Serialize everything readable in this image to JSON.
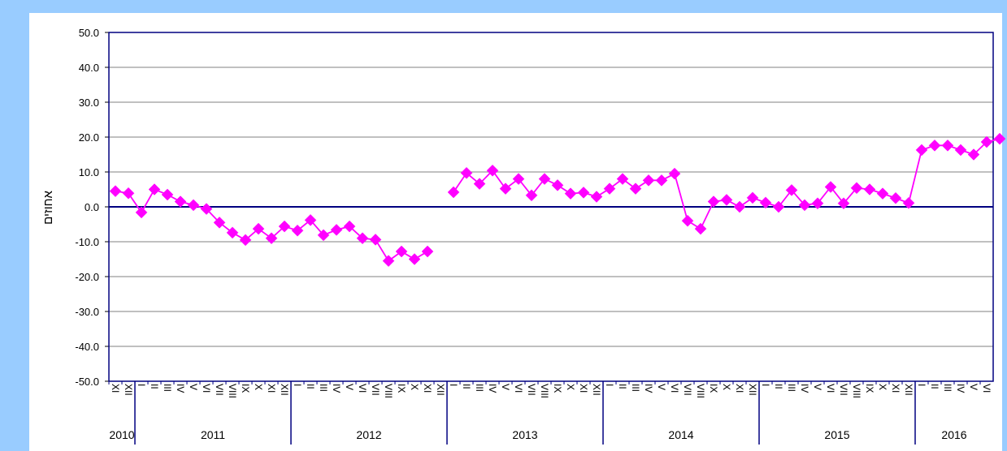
{
  "chart_data": {
    "type": "line",
    "xlabel": "",
    "ylabel": "אחוזים",
    "ylim": [
      -50,
      50
    ],
    "yticks": [
      "50.0",
      "40.0",
      "30.0",
      "20.0",
      "10.0",
      "0.0",
      "-10.0",
      "-20.0",
      "-30.0",
      "-40.0",
      "-50.0"
    ],
    "grid": true,
    "legend": "none",
    "series_color": "#ff00ff",
    "axis_color": "#000080",
    "years": [
      {
        "label": "2010",
        "months": [
          "XI",
          "XII"
        ]
      },
      {
        "label": "2011",
        "months": [
          "I",
          "II",
          "III",
          "IV",
          "V",
          "VI",
          "VII",
          "VIII",
          "IX",
          "X",
          "XI",
          "XII"
        ]
      },
      {
        "label": "2012",
        "months": [
          "I",
          "II",
          "III",
          "IV",
          "V",
          "VI",
          "VII",
          "VIII",
          "IX",
          "X",
          "XI",
          "XII"
        ]
      },
      {
        "label": "2013",
        "months": [
          "I",
          "II",
          "III",
          "IV",
          "V",
          "VI",
          "VII",
          "VIII",
          "IX",
          "X",
          "XI",
          "XII"
        ]
      },
      {
        "label": "2014",
        "months": [
          "I",
          "II",
          "III",
          "IV",
          "V",
          "VI",
          "VII",
          "VIII",
          "IX",
          "X",
          "XI",
          "XII"
        ]
      },
      {
        "label": "2015",
        "months": [
          "I",
          "II",
          "III",
          "IV",
          "V",
          "VI",
          "VII",
          "VIII",
          "IX",
          "X",
          "XI",
          "XII"
        ]
      },
      {
        "label": "2016",
        "months": [
          "I",
          "II",
          "III",
          "IV",
          "V",
          "VI"
        ]
      }
    ],
    "series": [
      {
        "values": [
          4.5,
          3.9,
          -1.6,
          5.0,
          3.5,
          1.5,
          0.5,
          -0.6,
          -4.5,
          -7.4,
          -9.5,
          -6.3,
          -9.0,
          -5.6,
          -6.8,
          -3.8,
          -8.1,
          -6.6,
          -5.6,
          -9.0,
          -9.4,
          -15.5,
          -12.8,
          -15.0,
          -12.8,
          null,
          4.2,
          9.7,
          6.6,
          10.4,
          5.2,
          8.0,
          3.3,
          8.0,
          6.2,
          3.8,
          4.1,
          2.9,
          5.2,
          8.0,
          5.2,
          7.6,
          7.6,
          9.5,
          -4.0,
          -6.3,
          1.5,
          2.0,
          0.0,
          2.6,
          1.2,
          0.0,
          4.8,
          0.5,
          1.0,
          5.7,
          1.0,
          5.4,
          5.0,
          3.8,
          2.5,
          1.1,
          16.3,
          17.6,
          17.6,
          16.3,
          15.0,
          18.6,
          19.5
        ]
      }
    ]
  }
}
